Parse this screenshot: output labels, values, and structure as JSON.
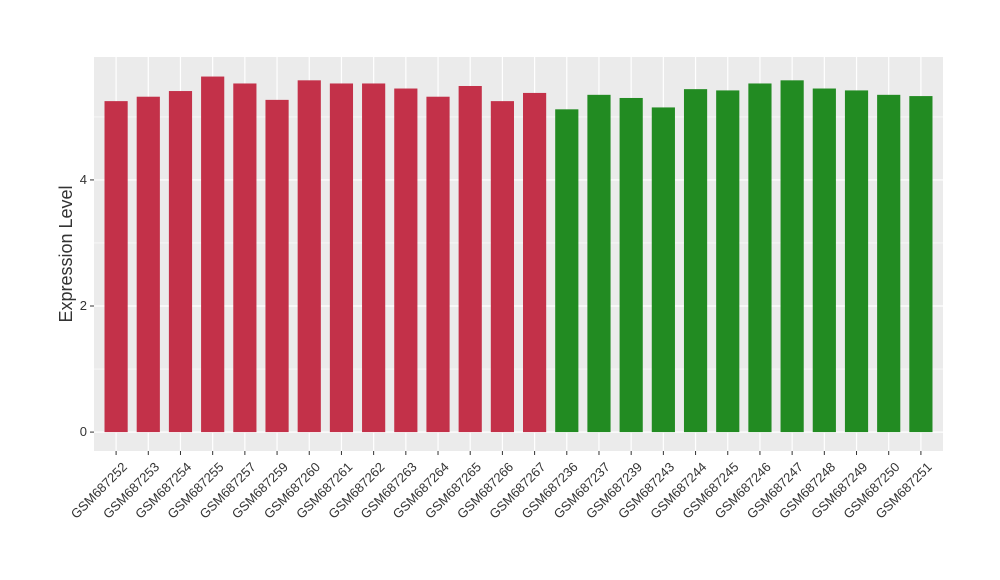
{
  "chart_data": {
    "type": "bar",
    "title": "",
    "xlabel": "",
    "ylabel": "Expression Level",
    "ylim": [
      -0.3,
      5.95
    ],
    "yticks": [
      0,
      2,
      4
    ],
    "grid": true,
    "legend": "none",
    "categories": [
      "GSM687252",
      "GSM687253",
      "GSM687254",
      "GSM687255",
      "GSM687257",
      "GSM687259",
      "GSM687260",
      "GSM687261",
      "GSM687262",
      "GSM687263",
      "GSM687264",
      "GSM687265",
      "GSM687266",
      "GSM687267",
      "GSM687236",
      "GSM687237",
      "GSM687239",
      "GSM687243",
      "GSM687244",
      "GSM687245",
      "GSM687246",
      "GSM687247",
      "GSM687248",
      "GSM687249",
      "GSM687250",
      "GSM687251"
    ],
    "values": [
      5.25,
      5.32,
      5.41,
      5.64,
      5.53,
      5.27,
      5.58,
      5.53,
      5.53,
      5.45,
      5.32,
      5.49,
      5.25,
      5.38,
      5.12,
      5.35,
      5.3,
      5.15,
      5.44,
      5.42,
      5.53,
      5.58,
      5.45,
      5.42,
      5.35,
      5.33
    ],
    "groups": [
      "A",
      "A",
      "A",
      "A",
      "A",
      "A",
      "A",
      "A",
      "A",
      "A",
      "A",
      "A",
      "A",
      "A",
      "B",
      "B",
      "B",
      "B",
      "B",
      "B",
      "B",
      "B",
      "B",
      "B",
      "B",
      "B"
    ],
    "colors": {
      "A": "#c33149",
      "B": "#228b22"
    },
    "panel_background": "#ebebeb",
    "grid_color": "#ffffff"
  }
}
